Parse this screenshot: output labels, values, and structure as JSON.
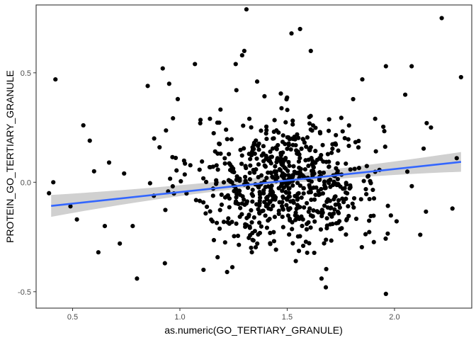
{
  "chart_data": {
    "type": "scatter",
    "title": "",
    "xlabel": "as.numeric(GO_TERTIARY_GRANULE)",
    "ylabel": "PROTEIN_GO_TERTIARY_GRANULE",
    "xlim": [
      0.33,
      2.36
    ],
    "ylim": [
      -0.575,
      0.81
    ],
    "x_ticks": [
      0.5,
      1.0,
      1.5,
      2.0
    ],
    "x_tick_labels": [
      "0.5",
      "1.0",
      "1.5",
      "2.0"
    ],
    "y_ticks": [
      -0.5,
      0.0,
      0.5
    ],
    "y_tick_labels": [
      "-0.5",
      "0.0",
      "0.5"
    ],
    "grid": false,
    "legend": "none",
    "colors": {
      "points": "#000000",
      "fit_line": "#3366ff",
      "confidence_band": "#c8c8c8"
    },
    "fit": {
      "method": "linear",
      "x_range": [
        0.4,
        2.31
      ],
      "y_at_x_min": -0.108,
      "y_at_x_max": 0.093,
      "ci_at_x_min": [
        -0.158,
        -0.058
      ],
      "ci_at_x_mid": [
        -0.02,
        0.02
      ],
      "ci_at_x_max": [
        0.048,
        0.138
      ]
    },
    "highlight_points": [
      {
        "x": 0.42,
        "y": 0.47
      },
      {
        "x": 0.39,
        "y": -0.05
      },
      {
        "x": 0.41,
        "y": 0.0
      },
      {
        "x": 0.49,
        "y": -0.11
      },
      {
        "x": 0.52,
        "y": -0.17
      },
      {
        "x": 0.55,
        "y": 0.26
      },
      {
        "x": 0.58,
        "y": 0.19
      },
      {
        "x": 0.6,
        "y": 0.05
      },
      {
        "x": 0.62,
        "y": -0.32
      },
      {
        "x": 0.65,
        "y": -0.2
      },
      {
        "x": 0.67,
        "y": 0.09
      },
      {
        "x": 0.72,
        "y": -0.28
      },
      {
        "x": 0.74,
        "y": 0.04
      },
      {
        "x": 0.78,
        "y": -0.2
      },
      {
        "x": 0.8,
        "y": -0.44
      },
      {
        "x": 0.85,
        "y": 0.44
      },
      {
        "x": 0.88,
        "y": 0.2
      },
      {
        "x": 0.92,
        "y": 0.52
      },
      {
        "x": 0.93,
        "y": -0.37
      },
      {
        "x": 0.95,
        "y": 0.45
      },
      {
        "x": 0.99,
        "y": 0.38
      },
      {
        "x": 1.07,
        "y": 0.54
      },
      {
        "x": 1.11,
        "y": -0.4
      },
      {
        "x": 1.14,
        "y": 0.29
      },
      {
        "x": 1.22,
        "y": -0.41
      },
      {
        "x": 1.26,
        "y": 0.54
      },
      {
        "x": 1.29,
        "y": 0.58
      },
      {
        "x": 1.3,
        "y": 0.6
      },
      {
        "x": 1.31,
        "y": 0.79
      },
      {
        "x": 1.36,
        "y": 0.46
      },
      {
        "x": 1.52,
        "y": 0.68
      },
      {
        "x": 1.56,
        "y": 0.7
      },
      {
        "x": 1.54,
        "y": -0.36
      },
      {
        "x": 1.61,
        "y": 0.6
      },
      {
        "x": 1.66,
        "y": -0.44
      },
      {
        "x": 1.68,
        "y": -0.48
      },
      {
        "x": 1.85,
        "y": 0.47
      },
      {
        "x": 1.91,
        "y": 0.29
      },
      {
        "x": 1.96,
        "y": -0.51
      },
      {
        "x": 1.96,
        "y": 0.53
      },
      {
        "x": 2.05,
        "y": 0.4
      },
      {
        "x": 2.08,
        "y": 0.53
      },
      {
        "x": 2.12,
        "y": -0.24
      },
      {
        "x": 2.15,
        "y": 0.27
      },
      {
        "x": 2.17,
        "y": 0.25
      },
      {
        "x": 2.22,
        "y": 0.75
      },
      {
        "x": 2.27,
        "y": -0.12
      },
      {
        "x": 2.29,
        "y": 0.11
      },
      {
        "x": 2.31,
        "y": 0.48
      }
    ],
    "cloud": {
      "count": 700,
      "x_center": 1.5,
      "x_sd": 0.22,
      "y_center": 0.0,
      "y_sd": 0.15,
      "x_clip": [
        0.75,
        2.15
      ],
      "y_clip": [
        -0.42,
        0.45
      ]
    }
  }
}
